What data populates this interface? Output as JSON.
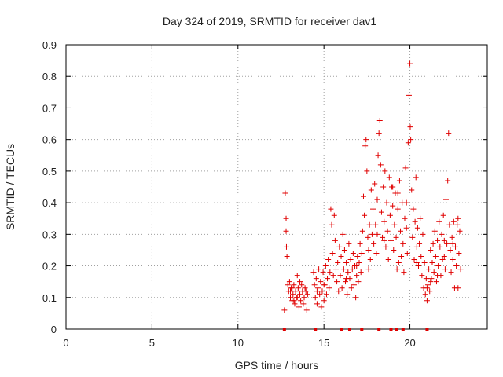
{
  "chart_data": {
    "type": "scatter",
    "title": "Day 324 of 2019, SRMTID for receiver dav1",
    "xlabel": "GPS time / hours",
    "ylabel": "SRMTID / TECUs",
    "xlim": [
      0,
      24.5
    ],
    "ylim": [
      0,
      0.9
    ],
    "xticks": [
      0,
      5,
      10,
      15,
      20
    ],
    "yticks": [
      0,
      0.1,
      0.2,
      0.3,
      0.4,
      0.5,
      0.6,
      0.7,
      0.8,
      0.9
    ],
    "grid": true,
    "marker": "+",
    "color": "#e00000",
    "zero_markers_x": [
      12.7,
      14.5,
      16.0,
      16.5,
      17.2,
      18.2,
      18.9,
      19.2,
      19.6,
      21.0
    ],
    "series": [
      {
        "name": "dav1",
        "points": [
          [
            12.7,
            0.06
          ],
          [
            12.75,
            0.43
          ],
          [
            12.8,
            0.35
          ],
          [
            12.8,
            0.31
          ],
          [
            12.82,
            0.26
          ],
          [
            12.85,
            0.23
          ],
          [
            12.9,
            0.14
          ],
          [
            12.95,
            0.12
          ],
          [
            13.0,
            0.15
          ],
          [
            13.05,
            0.1
          ],
          [
            13.1,
            0.13
          ],
          [
            13.15,
            0.09
          ],
          [
            13.2,
            0.11
          ],
          [
            13.25,
            0.14
          ],
          [
            13.3,
            0.08
          ],
          [
            13.35,
            0.12
          ],
          [
            13.4,
            0.1
          ],
          [
            13.45,
            0.17
          ],
          [
            13.5,
            0.13
          ],
          [
            13.55,
            0.07
          ],
          [
            13.6,
            0.11
          ],
          [
            13.65,
            0.09
          ],
          [
            13.7,
            0.14
          ],
          [
            13.75,
            0.12
          ],
          [
            13.8,
            0.08
          ],
          [
            13.85,
            0.1
          ],
          [
            13.9,
            0.13
          ],
          [
            14.0,
            0.06
          ],
          [
            14.05,
            0.11
          ],
          [
            13.15,
            0.13
          ],
          [
            13.05,
            0.12
          ],
          [
            13.45,
            0.1
          ],
          [
            13.25,
            0.09
          ],
          [
            13.6,
            0.15
          ],
          [
            13.95,
            0.12
          ],
          [
            14.4,
            0.18
          ],
          [
            14.45,
            0.14
          ],
          [
            14.5,
            0.1
          ],
          [
            14.55,
            0.16
          ],
          [
            14.6,
            0.08
          ],
          [
            14.65,
            0.13
          ],
          [
            14.7,
            0.19
          ],
          [
            14.75,
            0.11
          ],
          [
            14.8,
            0.15
          ],
          [
            14.85,
            0.07
          ],
          [
            14.9,
            0.12
          ],
          [
            14.95,
            0.18
          ],
          [
            15.0,
            0.09
          ],
          [
            15.05,
            0.14
          ],
          [
            15.1,
            0.2
          ],
          [
            15.15,
            0.11
          ],
          [
            15.2,
            0.16
          ],
          [
            15.25,
            0.22
          ],
          [
            15.3,
            0.13
          ],
          [
            15.35,
            0.18
          ],
          [
            15.4,
            0.38
          ],
          [
            15.45,
            0.33
          ],
          [
            15.5,
            0.24
          ],
          [
            15.6,
            0.36
          ],
          [
            15.65,
            0.28
          ],
          [
            15.7,
            0.19
          ],
          [
            15.75,
            0.15
          ],
          [
            15.8,
            0.21
          ],
          [
            15.85,
            0.12
          ],
          [
            15.9,
            0.26
          ],
          [
            15.95,
            0.17
          ],
          [
            16.0,
            0.23
          ],
          [
            16.05,
            0.13
          ],
          [
            16.1,
            0.3
          ],
          [
            16.15,
            0.19
          ],
          [
            16.2,
            0.25
          ],
          [
            16.25,
            0.15
          ],
          [
            16.3,
            0.21
          ],
          [
            16.35,
            0.11
          ],
          [
            16.4,
            0.18
          ],
          [
            16.45,
            0.27
          ],
          [
            16.5,
            0.16
          ],
          [
            16.55,
            0.22
          ],
          [
            16.6,
            0.13
          ],
          [
            16.65,
            0.19
          ],
          [
            16.7,
            0.24
          ],
          [
            16.75,
            0.14
          ],
          [
            16.8,
            0.2
          ],
          [
            16.85,
            0.1
          ],
          [
            16.9,
            0.17
          ],
          [
            16.95,
            0.23
          ],
          [
            17.0,
            0.15
          ],
          [
            17.05,
            0.21
          ],
          [
            17.1,
            0.27
          ],
          [
            17.15,
            0.18
          ],
          [
            17.2,
            0.24
          ],
          [
            17.25,
            0.31
          ],
          [
            17.3,
            0.42
          ],
          [
            17.35,
            0.36
          ],
          [
            17.4,
            0.58
          ],
          [
            17.45,
            0.6
          ],
          [
            17.5,
            0.5
          ],
          [
            17.55,
            0.29
          ],
          [
            17.6,
            0.25
          ],
          [
            17.65,
            0.33
          ],
          [
            17.7,
            0.22
          ],
          [
            17.75,
            0.44
          ],
          [
            17.8,
            0.3
          ],
          [
            17.85,
            0.38
          ],
          [
            17.9,
            0.27
          ],
          [
            17.95,
            0.46
          ],
          [
            18.0,
            0.33
          ],
          [
            18.05,
            0.24
          ],
          [
            18.1,
            0.41
          ],
          [
            18.15,
            0.55
          ],
          [
            18.2,
            0.62
          ],
          [
            18.25,
            0.66
          ],
          [
            18.3,
            0.52
          ],
          [
            18.35,
            0.37
          ],
          [
            18.4,
            0.29
          ],
          [
            18.45,
            0.45
          ],
          [
            18.5,
            0.34
          ],
          [
            18.55,
            0.5
          ],
          [
            18.6,
            0.26
          ],
          [
            18.65,
            0.4
          ],
          [
            18.7,
            0.31
          ],
          [
            18.75,
            0.22
          ],
          [
            18.8,
            0.48
          ],
          [
            18.85,
            0.36
          ],
          [
            18.9,
            0.28
          ],
          [
            18.95,
            0.45
          ],
          [
            19.0,
            0.39
          ],
          [
            19.05,
            0.25
          ],
          [
            19.1,
            0.33
          ],
          [
            19.15,
            0.43
          ],
          [
            19.2,
            0.29
          ],
          [
            19.25,
            0.19
          ],
          [
            19.3,
            0.38
          ],
          [
            19.35,
            0.21
          ],
          [
            19.4,
            0.47
          ],
          [
            19.45,
            0.31
          ],
          [
            19.5,
            0.23
          ],
          [
            19.55,
            0.4
          ],
          [
            19.6,
            0.27
          ],
          [
            19.65,
            0.18
          ],
          [
            19.7,
            0.35
          ],
          [
            19.75,
            0.51
          ],
          [
            19.8,
            0.32
          ],
          [
            19.85,
            0.24
          ],
          [
            19.9,
            0.59
          ],
          [
            19.95,
            0.74
          ],
          [
            20.0,
            0.84
          ],
          [
            20.02,
            0.64
          ],
          [
            20.05,
            0.6
          ],
          [
            20.1,
            0.44
          ],
          [
            20.15,
            0.29
          ],
          [
            20.2,
            0.38
          ],
          [
            20.25,
            0.22
          ],
          [
            20.3,
            0.34
          ],
          [
            20.35,
            0.48
          ],
          [
            20.4,
            0.26
          ],
          [
            20.45,
            0.32
          ],
          [
            20.5,
            0.2
          ],
          [
            20.55,
            0.27
          ],
          [
            20.6,
            0.35
          ],
          [
            20.65,
            0.23
          ],
          [
            20.7,
            0.17
          ],
          [
            20.75,
            0.3
          ],
          [
            20.8,
            0.13
          ],
          [
            20.85,
            0.21
          ],
          [
            20.9,
            0.11
          ],
          [
            20.95,
            0.16
          ],
          [
            21.0,
            0.09
          ],
          [
            21.05,
            0.14
          ],
          [
            21.1,
            0.19
          ],
          [
            21.15,
            0.12
          ],
          [
            21.2,
            0.25
          ],
          [
            21.25,
            0.16
          ],
          [
            21.3,
            0.21
          ],
          [
            21.35,
            0.27
          ],
          [
            21.4,
            0.18
          ],
          [
            21.45,
            0.31
          ],
          [
            21.5,
            0.23
          ],
          [
            21.55,
            0.15
          ],
          [
            21.6,
            0.28
          ],
          [
            21.65,
            0.2
          ],
          [
            21.7,
            0.34
          ],
          [
            21.75,
            0.26
          ],
          [
            21.8,
            0.17
          ],
          [
            21.85,
            0.3
          ],
          [
            21.9,
            0.22
          ],
          [
            21.95,
            0.36
          ],
          [
            22.0,
            0.28
          ],
          [
            22.05,
            0.19
          ],
          [
            22.1,
            0.41
          ],
          [
            22.15,
            0.27
          ],
          [
            22.2,
            0.47
          ],
          [
            22.25,
            0.62
          ],
          [
            22.3,
            0.33
          ],
          [
            22.35,
            0.25
          ],
          [
            22.4,
            0.18
          ],
          [
            22.45,
            0.29
          ],
          [
            22.5,
            0.22
          ],
          [
            22.55,
            0.34
          ],
          [
            22.6,
            0.13
          ],
          [
            22.65,
            0.26
          ],
          [
            22.7,
            0.2
          ],
          [
            22.75,
            0.33
          ],
          [
            22.8,
            0.13
          ],
          [
            22.85,
            0.24
          ],
          [
            22.9,
            0.31
          ],
          [
            22.95,
            0.19
          ],
          [
            14.6,
            0.12
          ],
          [
            15.0,
            0.14
          ],
          [
            15.55,
            0.17
          ],
          [
            16.3,
            0.16
          ],
          [
            16.9,
            0.2
          ],
          [
            17.6,
            0.19
          ],
          [
            18.1,
            0.3
          ],
          [
            18.5,
            0.28
          ],
          [
            19.0,
            0.45
          ],
          [
            19.3,
            0.43
          ],
          [
            19.8,
            0.4
          ],
          [
            20.4,
            0.21
          ],
          [
            21.0,
            0.13
          ],
          [
            21.2,
            0.15
          ],
          [
            21.6,
            0.17
          ],
          [
            22.0,
            0.23
          ],
          [
            22.5,
            0.27
          ],
          [
            22.8,
            0.35
          ]
        ]
      }
    ]
  }
}
